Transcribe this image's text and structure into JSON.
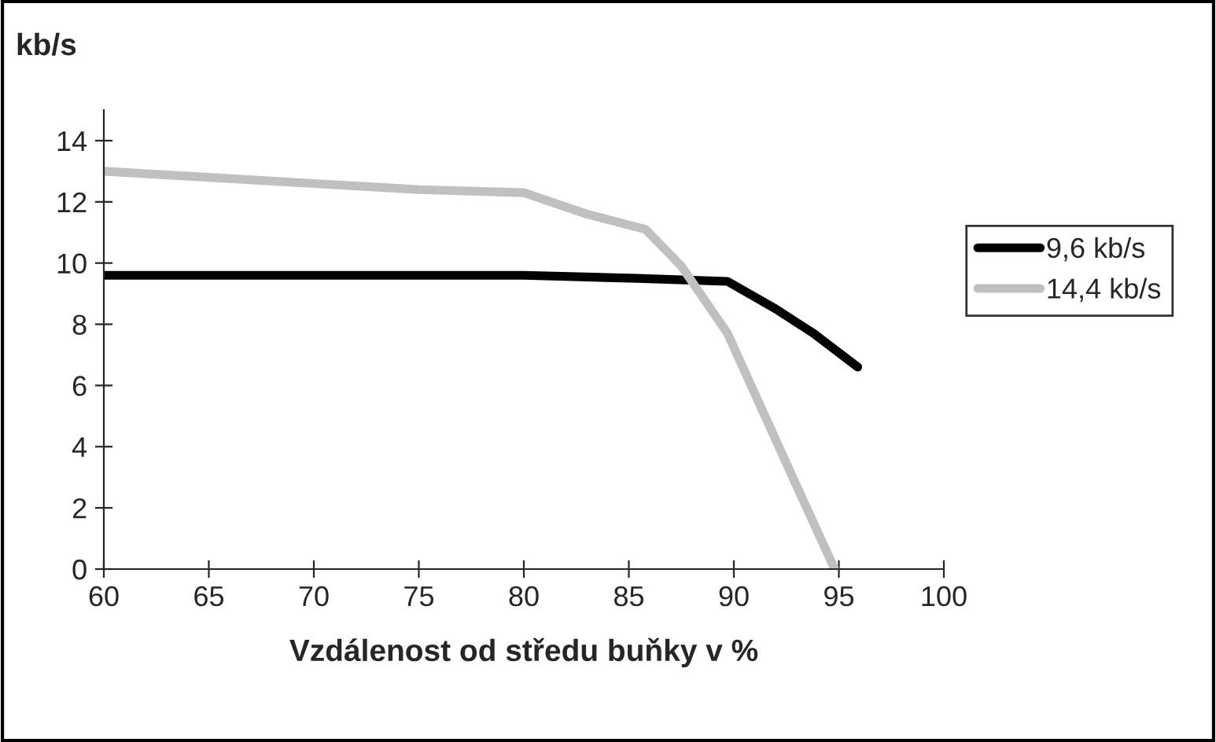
{
  "chart_data": {
    "type": "line",
    "xlabel": "Vzdálenost od středu buňky v %",
    "ylabel": "kb/s",
    "series": [
      {
        "name": "9,6 kb/s",
        "color": "#000000",
        "x": [
          60,
          70,
          80,
          85.4,
          89.7,
          92,
          93.8,
          95.9
        ],
        "values": [
          9.6,
          9.6,
          9.6,
          9.5,
          9.4,
          8.5,
          7.7,
          6.6
        ]
      },
      {
        "name": "14,4 kb/s",
        "color": "#c0c0c0",
        "x": [
          60,
          65,
          70,
          75,
          80,
          83,
          85.8,
          87.5,
          89.7,
          93,
          94.8
        ],
        "values": [
          13,
          12.8,
          12.6,
          12.4,
          12.3,
          11.6,
          11.1,
          9.9,
          7.7,
          2.7,
          0
        ]
      }
    ],
    "xlim": [
      60,
      100
    ],
    "xticks": [
      60,
      65,
      70,
      75,
      80,
      85,
      90,
      95,
      100
    ],
    "ylim": [
      0,
      15
    ],
    "yticks": [
      0,
      2,
      4,
      6,
      8,
      10,
      12,
      14
    ],
    "grid": false,
    "legend": "right",
    "line_style": "solid"
  }
}
